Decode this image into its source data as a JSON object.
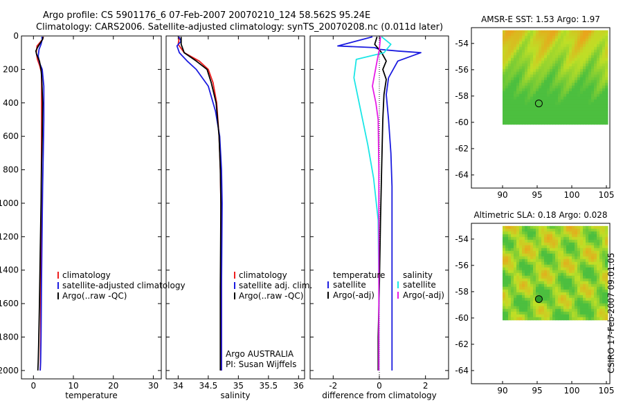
{
  "page": {
    "title_line1": "Argo profile: CS 5901176_6 07-Feb-2007 20070210_124 58.562S 95.24E",
    "title_line2": "Climatology: CARS2006. Satellite-adjusted climatology: synTS_20070208.nc (0.011d later)",
    "credit": "CSIRO 17-Feb-2007 09:01:05",
    "argo_label": "Argo AUSTRALIA",
    "pi_label": "PI: Susan Wijffels"
  },
  "colors": {
    "climatology": "#ee1c1c",
    "satellite": "#1a1adf",
    "argo": "#000000",
    "sat_salinity": "#1ae6e6",
    "argo_salinity": "#e61ae6",
    "map_green": "#4cbf3f",
    "map_yellow": "#bfdf26",
    "map_orange": "#e8a61c"
  },
  "chart_data": [
    {
      "type": "line",
      "id": "temperature",
      "xlabel": "temperature",
      "ylabel": "",
      "xlim": [
        -3,
        32
      ],
      "ylim": [
        2050,
        0
      ],
      "xticks": [
        "0",
        "10",
        "20",
        "30"
      ],
      "xtick_values": [
        0,
        10,
        20,
        30
      ],
      "yticks": [
        "0",
        "200",
        "400",
        "600",
        "800",
        "1000",
        "1200",
        "1400",
        "1600",
        "1800",
        "2000"
      ],
      "ytick_values": [
        0,
        200,
        400,
        600,
        800,
        1000,
        1200,
        1400,
        1600,
        1800,
        2000
      ],
      "legend": [
        "climatology",
        "satellite-adjusted climatology",
        "Argo(..raw -QC)"
      ],
      "series": [
        {
          "name": "climatology",
          "color": "#ee1c1c",
          "x": [
            2.5,
            2.3,
            0.9,
            0.7,
            1.0,
            1.6,
            2.0,
            2.05,
            2.05,
            2.0,
            1.95,
            1.9,
            1.85,
            1.8,
            1.75,
            1.7
          ],
          "depth": [
            5,
            20,
            60,
            100,
            140,
            180,
            220,
            300,
            500,
            700,
            900,
            1200,
            1500,
            1800,
            1950,
            2000
          ]
        },
        {
          "name": "satellite-adjusted climatology",
          "color": "#1a1adf",
          "x": [
            2.1,
            2.2,
            1.9,
            1.4,
            1.2,
            1.5,
            2.2,
            2.6,
            2.6,
            2.45,
            2.3,
            2.15,
            2.0,
            1.9,
            1.8,
            1.7
          ],
          "depth": [
            5,
            20,
            50,
            80,
            120,
            160,
            200,
            300,
            500,
            700,
            900,
            1200,
            1500,
            1800,
            1950,
            2000
          ]
        },
        {
          "name": "Argo(..raw -QC)",
          "color": "#000000",
          "x": [
            2.4,
            2.3,
            1.5,
            1.0,
            0.6,
            0.8,
            1.5,
            1.9,
            2.1,
            2.3,
            2.2,
            2.0,
            1.9,
            1.7,
            1.5,
            1.3,
            1.2,
            1.1
          ],
          "depth": [
            5,
            20,
            50,
            70,
            90,
            110,
            150,
            200,
            260,
            400,
            600,
            800,
            1000,
            1300,
            1600,
            1850,
            1950,
            2000
          ]
        }
      ]
    },
    {
      "type": "line",
      "id": "salinity",
      "xlabel": "salinity",
      "xlim": [
        33.8,
        36.1
      ],
      "ylim": [
        2050,
        0
      ],
      "xticks": [
        "34",
        "34.5",
        "35",
        "35.5",
        "36"
      ],
      "xtick_values": [
        34,
        34.5,
        35,
        35.5,
        36
      ],
      "legend": [
        "climatology",
        "satellite adj. clim.",
        "Argo(..raw -QC)"
      ],
      "series": [
        {
          "name": "climatology",
          "color": "#ee1c1c",
          "x": [
            34.02,
            34.0,
            34.1,
            34.35,
            34.5,
            34.58,
            34.64,
            34.68,
            34.7,
            34.71,
            34.72,
            34.72,
            34.72
          ],
          "depth": [
            5,
            50,
            100,
            150,
            200,
            280,
            400,
            600,
            800,
            1000,
            1400,
            1800,
            2000
          ]
        },
        {
          "name": "satellite adj. clim.",
          "color": "#1a1adf",
          "x": [
            34.01,
            34.05,
            33.98,
            34.02,
            34.15,
            34.3,
            34.5,
            34.62,
            34.69,
            34.72,
            34.73,
            34.72,
            34.72
          ],
          "depth": [
            5,
            30,
            60,
            100,
            150,
            200,
            300,
            450,
            600,
            800,
            1000,
            1500,
            2000
          ]
        },
        {
          "name": "Argo(..raw -QC)",
          "color": "#000000",
          "x": [
            34.05,
            34.05,
            34.1,
            34.3,
            34.48,
            34.55,
            34.63,
            34.68,
            34.7,
            34.71,
            34.7,
            34.7
          ],
          "depth": [
            5,
            50,
            100,
            150,
            200,
            280,
            400,
            600,
            800,
            1000,
            1500,
            2000
          ]
        }
      ]
    },
    {
      "type": "line",
      "id": "difference",
      "xlabel": "difference from climatology",
      "xlim": [
        -3,
        3
      ],
      "ylim": [
        2050,
        0
      ],
      "xticks": [
        "-2",
        "0",
        "2"
      ],
      "xtick_values": [
        -2,
        0,
        2
      ],
      "legend_temperature_title": "temperature",
      "legend_salinity_title": "salinity",
      "legend_temperature": [
        "satellite",
        "Argo(-adj)"
      ],
      "legend_salinity": [
        "satellite",
        "Argo(-adj)"
      ],
      "series": [
        {
          "name": "temperature satellite",
          "color": "#1a1adf",
          "x": [
            -0.3,
            -1.8,
            -0.2,
            0.0,
            0.8,
            1.8,
            0.8,
            0.4,
            0.3,
            0.4,
            0.5,
            0.55,
            0.55,
            0.55,
            0.55
          ],
          "depth": [
            5,
            60,
            70,
            80,
            90,
            100,
            150,
            250,
            350,
            500,
            700,
            900,
            1300,
            1700,
            2000
          ]
        },
        {
          "name": "temperature Argo(-adj)",
          "color": "#000000",
          "x": [
            -0.1,
            -0.2,
            0.1,
            0.3,
            0.15,
            0.3,
            0.2,
            0.15,
            0.1,
            0.05,
            0.0,
            -0.05,
            -0.05
          ],
          "depth": [
            5,
            50,
            100,
            150,
            200,
            260,
            350,
            500,
            800,
            1100,
            1500,
            1800,
            2000
          ]
        },
        {
          "name": "salinity satellite",
          "color": "#1ae6e6",
          "x": [
            0.1,
            0.5,
            0.2,
            -1.0,
            -1.1,
            -0.8,
            -0.5,
            -0.25,
            -0.05,
            -0.02,
            -0.02
          ],
          "depth": [
            5,
            50,
            100,
            140,
            250,
            450,
            650,
            850,
            1100,
            1500,
            2000
          ]
        },
        {
          "name": "salinity Argo(-adj)",
          "color": "#e61ae6",
          "x": [
            0.05,
            0.0,
            -0.1,
            -0.3,
            -0.15,
            -0.05,
            -0.02,
            -0.02,
            -0.02
          ],
          "depth": [
            5,
            80,
            150,
            300,
            400,
            500,
            800,
            1300,
            2000
          ]
        }
      ]
    },
    {
      "type": "heatmap",
      "id": "sst-map",
      "title": "AMSR-E SST: 1.53  Argo: 1.97",
      "xlim": [
        85.5,
        105.5
      ],
      "ylim": [
        -65,
        -52.8
      ],
      "xticks": [
        "90",
        "95",
        "100",
        "105"
      ],
      "xtick_values": [
        90,
        95,
        100,
        105
      ],
      "yticks": [
        "-54",
        "-56",
        "-58",
        "-60",
        "-62",
        "-64"
      ],
      "ytick_values": [
        -54,
        -56,
        -58,
        -60,
        -62,
        -64
      ],
      "data_extent": {
        "lon": [
          90,
          105
        ],
        "lat": [
          -60,
          -53
        ]
      },
      "argo_point": {
        "lon": 95.24,
        "lat": -58.562
      }
    },
    {
      "type": "heatmap",
      "id": "sla-map",
      "title": "Altimetric SLA: 0.18  Argo: 0.028",
      "xlim": [
        85.5,
        105.5
      ],
      "ylim": [
        -65,
        -52.8
      ],
      "xticks": [
        "90",
        "95",
        "100",
        "105"
      ],
      "xtick_values": [
        90,
        95,
        100,
        105
      ],
      "yticks": [
        "-54",
        "-56",
        "-58",
        "-60",
        "-62",
        "-64"
      ],
      "ytick_values": [
        -54,
        -56,
        -58,
        -60,
        -62,
        -64
      ],
      "data_extent": {
        "lon": [
          90,
          105
        ],
        "lat": [
          -60,
          -53
        ]
      },
      "argo_point": {
        "lon": 95.24,
        "lat": -58.562
      }
    }
  ]
}
